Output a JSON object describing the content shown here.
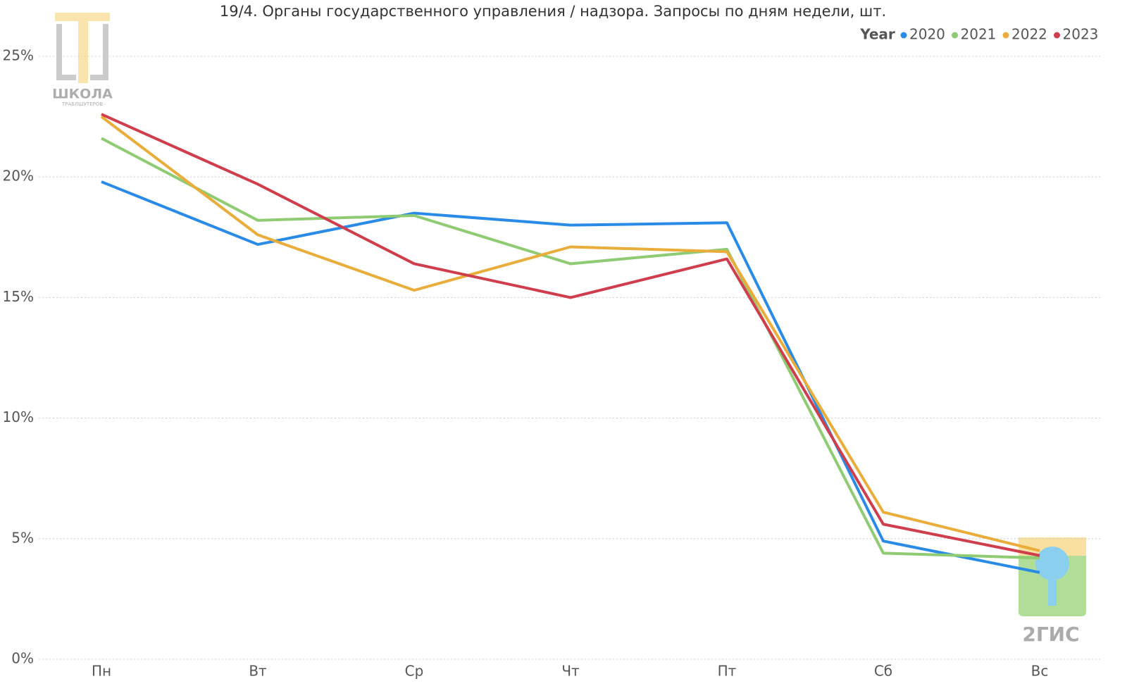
{
  "chart_data": {
    "type": "line",
    "title": "19/4. Органы государственного управления / надзора. Запросы по дням недели, шт.",
    "legend_title": "Year",
    "categories": [
      "Пн",
      "Вт",
      "Ср",
      "Чт",
      "Пт",
      "Сб",
      "Вс"
    ],
    "series": [
      {
        "name": "2020",
        "color": "#2a8be6",
        "values": [
          19.8,
          17.2,
          18.5,
          18.0,
          18.1,
          4.9,
          3.6
        ]
      },
      {
        "name": "2021",
        "color": "#8fcb72",
        "values": [
          21.6,
          18.2,
          18.4,
          16.4,
          17.0,
          4.4,
          4.2
        ]
      },
      {
        "name": "2022",
        "color": "#e9ad3c",
        "values": [
          22.5,
          17.6,
          15.3,
          17.1,
          16.9,
          6.1,
          4.5
        ]
      },
      {
        "name": "2023",
        "color": "#cf3e4d",
        "values": [
          22.6,
          19.7,
          16.4,
          15.0,
          16.6,
          5.6,
          4.3
        ]
      }
    ],
    "ylim": [
      0,
      25
    ],
    "yticks": [
      {
        "value": 0,
        "label": "0%"
      },
      {
        "value": 5,
        "label": "5%"
      },
      {
        "value": 10,
        "label": "10%"
      },
      {
        "value": 15,
        "label": "15%"
      },
      {
        "value": 20,
        "label": "20%"
      },
      {
        "value": 25,
        "label": "25%"
      }
    ],
    "grid": true
  },
  "logos": {
    "school": "ШКОЛА",
    "school_sub": "ТРАБЛШУТЕРОВ",
    "gis": "2ГИС"
  }
}
